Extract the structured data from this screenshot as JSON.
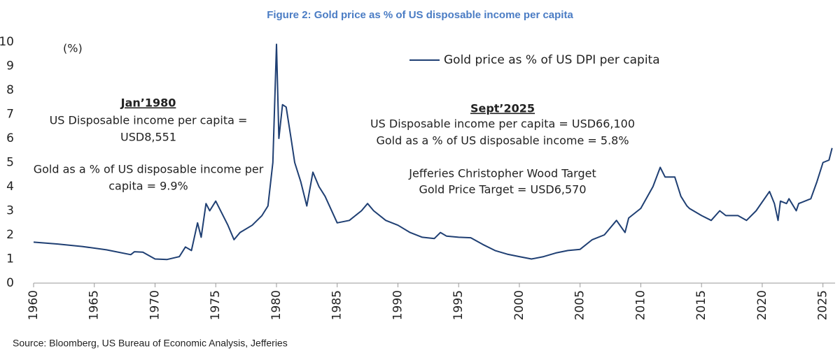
{
  "chart_data": {
    "type": "line",
    "title": "Figure 2: Gold price as % of US disposable income per capita",
    "y_unit": "(%)",
    "source": "Source: Bloomberg, US Bureau of Economic Analysis, Jefferies",
    "annotations": [
      [
        "Jan’1980",
        "US Disposable income per capita =",
        "USD8,551",
        "Gold as a % of US disposable income per",
        "capita = 9.9%"
      ],
      [
        "Sept’2025",
        "US Disposable income per capita = USD66,100",
        "Gold as a % of US disposable income = 5.8%",
        "Jefferies Christopher Wood Target",
        "Gold Price Target = USD6,570"
      ]
    ],
    "xlim": [
      1960,
      2026
    ],
    "xticks": [
      1960,
      1965,
      1970,
      1975,
      1980,
      1985,
      1990,
      1995,
      2000,
      2005,
      2010,
      2015,
      2020,
      2025
    ],
    "ylim": [
      0,
      10
    ],
    "yticks": [
      0,
      1,
      2,
      3,
      4,
      5,
      6,
      7,
      8,
      9,
      10
    ],
    "grid": false,
    "legend": "top-right",
    "series": [
      {
        "name": "Gold price as % of US DPI per capita",
        "color": "#1f3f73",
        "x": [
          1960,
          1962,
          1964,
          1966,
          1968,
          1968.3,
          1969,
          1970,
          1971,
          1972,
          1972.5,
          1973,
          1973.5,
          1973.8,
          1974.2,
          1974.5,
          1975,
          1975.5,
          1976,
          1976.5,
          1977,
          1978,
          1978.8,
          1979.3,
          1979.7,
          1980.0,
          1980.2,
          1980.5,
          1980.8,
          1981.2,
          1981.5,
          1982,
          1982.5,
          1983,
          1983.5,
          1984,
          1985,
          1986,
          1987,
          1987.5,
          1988,
          1989,
          1990,
          1991,
          1992,
          1993,
          1993.5,
          1994,
          1995,
          1996,
          1997,
          1998,
          1999,
          2000,
          2001,
          2002,
          2003,
          2004,
          2005,
          2006,
          2007,
          2008,
          2008.7,
          2009,
          2010,
          2011,
          2011.6,
          2012,
          2012.8,
          2013.3,
          2013.8,
          2014,
          2015,
          2015.8,
          2016.5,
          2017,
          2018,
          2018.7,
          2019.5,
          2020.6,
          2021,
          2021.3,
          2021.5,
          2022,
          2022.2,
          2022.8,
          2023,
          2024,
          2024.5,
          2025,
          2025.5,
          2025.75
        ],
        "values": [
          1.7,
          1.62,
          1.52,
          1.38,
          1.18,
          1.3,
          1.28,
          1.0,
          0.98,
          1.1,
          1.5,
          1.35,
          2.5,
          1.9,
          3.3,
          3.0,
          3.4,
          2.9,
          2.4,
          1.8,
          2.1,
          2.4,
          2.8,
          3.2,
          5.0,
          9.9,
          6.0,
          7.4,
          7.3,
          6.0,
          5.0,
          4.2,
          3.2,
          4.6,
          4.0,
          3.6,
          2.5,
          2.6,
          3.0,
          3.3,
          3.0,
          2.6,
          2.4,
          2.1,
          1.9,
          1.85,
          2.1,
          1.95,
          1.9,
          1.88,
          1.6,
          1.35,
          1.2,
          1.1,
          1.0,
          1.1,
          1.25,
          1.35,
          1.4,
          1.8,
          2.0,
          2.6,
          2.1,
          2.7,
          3.1,
          4.0,
          4.8,
          4.4,
          4.4,
          3.6,
          3.2,
          3.1,
          2.8,
          2.6,
          3.0,
          2.8,
          2.8,
          2.6,
          3.0,
          3.8,
          3.3,
          2.6,
          3.4,
          3.3,
          3.5,
          3.0,
          3.3,
          3.5,
          4.2,
          5.0,
          5.1,
          5.6
        ]
      }
    ]
  }
}
